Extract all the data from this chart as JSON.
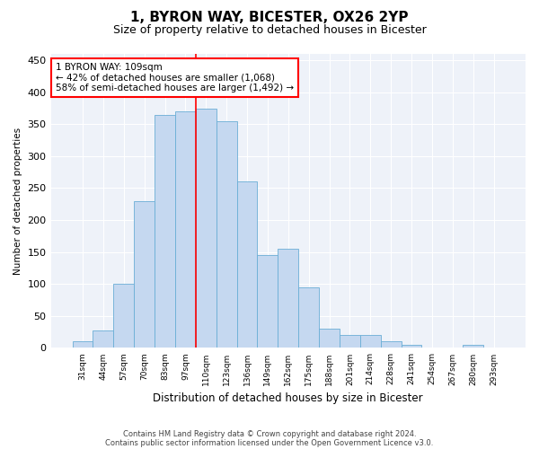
{
  "title_line1": "1, BYRON WAY, BICESTER, OX26 2YP",
  "title_line2": "Size of property relative to detached houses in Bicester",
  "xlabel": "Distribution of detached houses by size in Bicester",
  "ylabel": "Number of detached properties",
  "bar_labels": [
    "31sqm",
    "44sqm",
    "57sqm",
    "70sqm",
    "83sqm",
    "97sqm",
    "110sqm",
    "123sqm",
    "136sqm",
    "149sqm",
    "162sqm",
    "175sqm",
    "188sqm",
    "201sqm",
    "214sqm",
    "228sqm",
    "241sqm",
    "254sqm",
    "267sqm",
    "280sqm",
    "293sqm"
  ],
  "bar_values": [
    10,
    27,
    100,
    230,
    365,
    370,
    375,
    355,
    260,
    145,
    155,
    95,
    30,
    20,
    20,
    10,
    5,
    0,
    0,
    5,
    0
  ],
  "bar_color": "#c5d8f0",
  "bar_edge_color": "#6aaed6",
  "annotation_text": "1 BYRON WAY: 109sqm\n← 42% of detached houses are smaller (1,068)\n58% of semi-detached houses are larger (1,492) →",
  "annotation_box_color": "white",
  "annotation_box_edge_color": "red",
  "vline_color": "red",
  "ylim": [
    0,
    460
  ],
  "yticks": [
    0,
    50,
    100,
    150,
    200,
    250,
    300,
    350,
    400,
    450
  ],
  "footnote_line1": "Contains HM Land Registry data © Crown copyright and database right 2024.",
  "footnote_line2": "Contains public sector information licensed under the Open Government Licence v3.0.",
  "background_color": "#eef2f9",
  "grid_color": "#ffffff",
  "title_fontsize": 11,
  "subtitle_fontsize": 9,
  "vline_x": 5.5
}
